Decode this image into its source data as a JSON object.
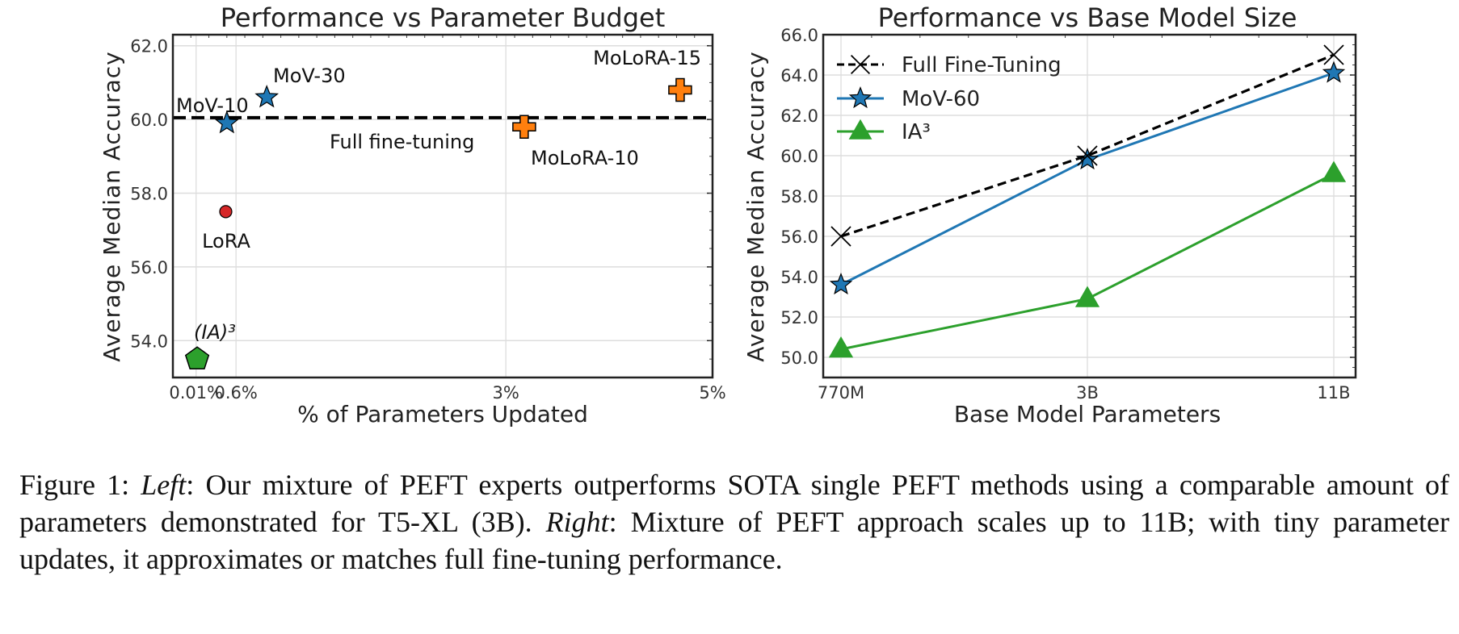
{
  "chart_data": [
    {
      "type": "scatter",
      "title": "Performance vs Parameter Budget",
      "xlabel": "% of Parameters Updated",
      "ylabel": "Average Median Accuracy",
      "ylim": [
        53.0,
        62.3
      ],
      "yticks": [
        54.0,
        56.0,
        58.0,
        60.0,
        62.0
      ],
      "ytick_labels": [
        "54.0",
        "56.0",
        "58.0",
        "60.0",
        "62.0"
      ],
      "xticks": [
        {
          "label": "0.01%",
          "pos": 0.043
        },
        {
          "label": "0.6%",
          "pos": 0.117
        },
        {
          "label": "3%",
          "pos": 0.617
        },
        {
          "label": "5%",
          "pos": 1.0
        }
      ],
      "grid": true,
      "reference_line": {
        "label": "Full fine-tuning",
        "y": 60.05,
        "style": "dashed",
        "color": "#000000"
      },
      "points": [
        {
          "name": "MoV-10",
          "xpos": 0.1,
          "y": 59.9,
          "marker": "star",
          "color": "#1f77b4"
        },
        {
          "name": "MoV-30",
          "xpos": 0.174,
          "y": 60.6,
          "marker": "star",
          "color": "#1f77b4"
        },
        {
          "name": "MoLoRA-10",
          "xpos": 0.651,
          "y": 59.8,
          "marker": "plus",
          "color": "#ff7f0e"
        },
        {
          "name": "MoLoRA-15",
          "xpos": 0.94,
          "y": 60.8,
          "marker": "plus",
          "color": "#ff7f0e"
        },
        {
          "name": "LoRA",
          "xpos": 0.098,
          "y": 57.5,
          "marker": "circle",
          "color": "#d62728"
        },
        {
          "name": "(IA)³",
          "xpos": 0.045,
          "y": 53.5,
          "marker": "pentagon",
          "color": "#2ca02c"
        }
      ]
    },
    {
      "type": "line",
      "title": "Performance vs Base Model Size",
      "xlabel": "Base Model Parameters",
      "ylabel": "Average Median Accuracy",
      "categories": [
        "770M",
        "3B",
        "11B"
      ],
      "ylim": [
        49.0,
        66.0
      ],
      "yticks": [
        50.0,
        52.0,
        54.0,
        56.0,
        58.0,
        60.0,
        62.0,
        64.0,
        66.0
      ],
      "ytick_labels": [
        "50.0",
        "52.0",
        "54.0",
        "56.0",
        "58.0",
        "60.0",
        "62.0",
        "64.0",
        "66.0"
      ],
      "grid": true,
      "legend": "top-left",
      "series": [
        {
          "name": "Full Fine-Tuning",
          "values": [
            56.0,
            60.0,
            65.0
          ],
          "color": "#000000",
          "marker": "x",
          "style": "dashed"
        },
        {
          "name": "MoV-60",
          "values": [
            53.6,
            59.8,
            64.1
          ],
          "color": "#1f77b4",
          "marker": "star",
          "style": "solid"
        },
        {
          "name": "IA³",
          "values": [
            50.4,
            52.9,
            59.1
          ],
          "color": "#2ca02c",
          "marker": "triangle",
          "style": "solid"
        }
      ]
    }
  ],
  "caption": {
    "figure_label": "Figure 1:",
    "left_label": "Left",
    "left_text": ": Our mixture of PEFT experts outperforms SOTA single PEFT methods using a comparable amount of parameters demonstrated for T5-XL (3B).",
    "right_label": "Right",
    "right_text": ": Mixture of PEFT approach scales up to 11B; with tiny parameter updates, it approximates or matches full fine-tuning performance."
  }
}
